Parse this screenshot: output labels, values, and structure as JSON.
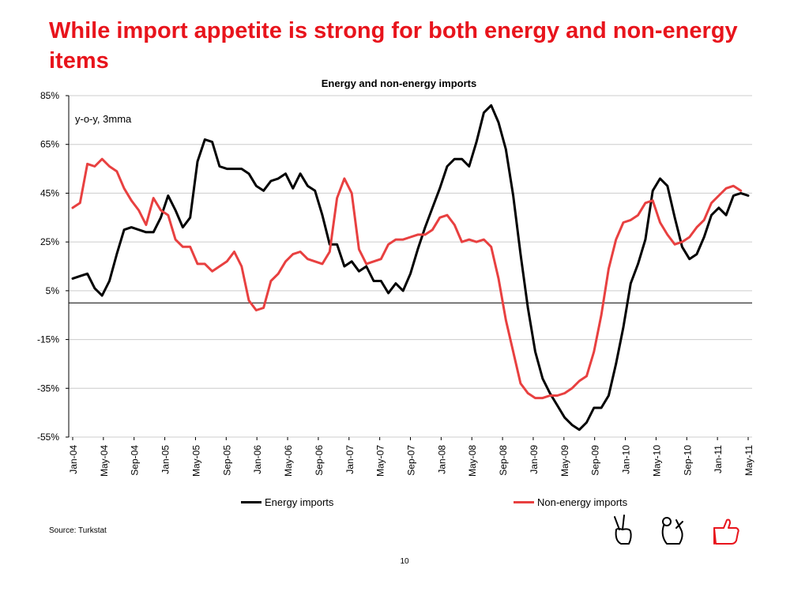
{
  "slide": {
    "title": "While import appetite is strong for both energy and non-energy items",
    "source": "Source: Turkstat",
    "page_number": "10"
  },
  "icons": [
    {
      "name": "peace-hand-icon",
      "color": "#000000"
    },
    {
      "name": "ok-hand-icon",
      "color": "#000000"
    },
    {
      "name": "thumbs-up-icon",
      "color": "#e8141c"
    }
  ],
  "chart_data": {
    "type": "line",
    "title": "Energy and non-energy imports",
    "annotation": "y-o-y, 3mma",
    "ylim": [
      -55,
      85
    ],
    "y_ticks": [
      -55,
      -35,
      -15,
      5,
      25,
      45,
      65,
      85
    ],
    "y_tick_labels": [
      "-55%",
      "-35%",
      "-15%",
      "5%",
      "25%",
      "45%",
      "65%",
      "85%"
    ],
    "x_tick_labels": [
      "Jan-04",
      "May-04",
      "Sep-04",
      "Jan-05",
      "May-05",
      "Sep-05",
      "Jan-06",
      "May-06",
      "Sep-06",
      "Jan-07",
      "May-07",
      "Sep-07",
      "Jan-08",
      "May-08",
      "Sep-08",
      "Jan-09",
      "May-09",
      "Sep-09",
      "Jan-10",
      "May-10",
      "Sep-10",
      "Jan-11",
      "May-11"
    ],
    "grid": true,
    "legend_position": "bottom",
    "series": [
      {
        "name": "Energy imports",
        "color": "#000000",
        "values": [
          10,
          11,
          12,
          6,
          3,
          9,
          20,
          30,
          31,
          30,
          29,
          29,
          35,
          44,
          38,
          31,
          35,
          58,
          67,
          66,
          56,
          55,
          55,
          55,
          53,
          48,
          46,
          50,
          51,
          53,
          47,
          53,
          48,
          46,
          36,
          24,
          24,
          15,
          17,
          13,
          15,
          9,
          9,
          4,
          8,
          5,
          12,
          22,
          31,
          39,
          47,
          56,
          59,
          59,
          56,
          66,
          78,
          81,
          74,
          63,
          44,
          20,
          -2,
          -20,
          -31,
          -37,
          -42,
          -47,
          -50,
          -52,
          -49,
          -43,
          -43,
          -38,
          -25,
          -10,
          8,
          16,
          26,
          46,
          51,
          48,
          35,
          23,
          18,
          20,
          27,
          36,
          39,
          36,
          44,
          45,
          44
        ]
      },
      {
        "name": "Non-energy imports",
        "color": "#e84040",
        "values": [
          39,
          41,
          57,
          56,
          59,
          56,
          54,
          47,
          42,
          38,
          32,
          43,
          38,
          36,
          26,
          23,
          23,
          16,
          16,
          13,
          15,
          17,
          21,
          15,
          1,
          -3,
          -2,
          9,
          12,
          17,
          20,
          21,
          18,
          17,
          16,
          21,
          43,
          51,
          45,
          22,
          16,
          17,
          18,
          24,
          26,
          26,
          27,
          28,
          28,
          30,
          35,
          36,
          32,
          25,
          26,
          25,
          26,
          23,
          10,
          -7,
          -20,
          -33,
          -37,
          -39,
          -39,
          -38,
          -38,
          -37,
          -35,
          -32,
          -30,
          -20,
          -5,
          14,
          26,
          33,
          34,
          36,
          41,
          42,
          33,
          28,
          24,
          25,
          27,
          31,
          34,
          41,
          44,
          47,
          48,
          46
        ]
      }
    ]
  }
}
